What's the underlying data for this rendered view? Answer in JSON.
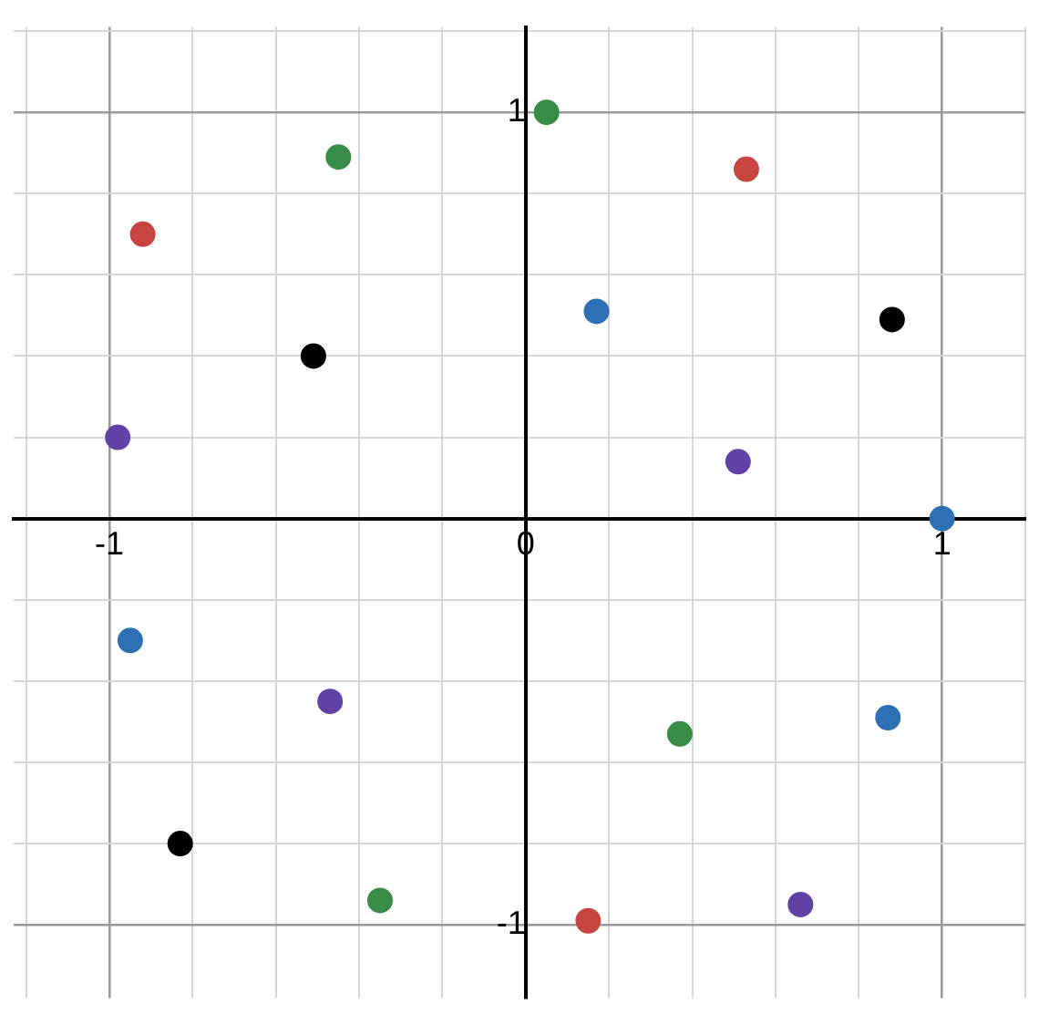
{
  "chart_data": {
    "type": "scatter",
    "xlim": [
      -1.23,
      1.2
    ],
    "ylim": [
      -1.18,
      1.21
    ],
    "xticks": [
      {
        "value": -1.2,
        "label": null
      },
      -1,
      {
        "value": -0.8,
        "label": null
      },
      {
        "value": -0.6,
        "label": null
      },
      {
        "value": -0.4,
        "label": null
      },
      {
        "value": -0.2,
        "label": null
      },
      0,
      {
        "value": 0.2,
        "label": null
      },
      {
        "value": 0.4,
        "label": null
      },
      {
        "value": 0.6,
        "label": null
      },
      {
        "value": 0.8,
        "label": null
      },
      1,
      {
        "value": 1.2,
        "label": null
      }
    ],
    "yticks": [
      -1,
      {
        "value": -0.8,
        "label": null
      },
      {
        "value": -0.6,
        "label": null
      },
      {
        "value": -0.4,
        "label": null
      },
      {
        "value": -0.2,
        "label": null
      },
      {
        "value": 0,
        "label": null
      },
      {
        "value": 0.2,
        "label": null
      },
      {
        "value": 0.4,
        "label": null
      },
      {
        "value": 0.6,
        "label": null
      },
      {
        "value": 0.8,
        "label": null
      },
      1,
      {
        "value": 1.2,
        "label": null
      }
    ],
    "grid": true,
    "legend": false,
    "marker": "circle",
    "series": [
      {
        "color": "#c74440",
        "x": [
          -0.92,
          0.53,
          0.15
        ],
        "values": [
          0.7,
          0.86,
          -0.99
        ]
      },
      {
        "color": "#388c46",
        "x": [
          -0.45,
          0.05,
          0.37,
          -0.35
        ],
        "values": [
          0.89,
          1.0,
          -0.53,
          -0.94
        ]
      },
      {
        "color": "#2d70b3",
        "x": [
          0.17,
          1.0,
          -0.95,
          0.87
        ],
        "values": [
          0.51,
          0,
          -0.3,
          -0.49
        ]
      },
      {
        "color": "#000000",
        "x": [
          -0.51,
          0.88,
          -0.83
        ],
        "values": [
          0.4,
          0.49,
          -0.8
        ]
      },
      {
        "color": "#6042a6",
        "x": [
          -0.98,
          0.51,
          -0.47,
          0.66
        ],
        "values": [
          0.2,
          0.14,
          -0.45,
          -0.95
        ]
      }
    ]
  }
}
